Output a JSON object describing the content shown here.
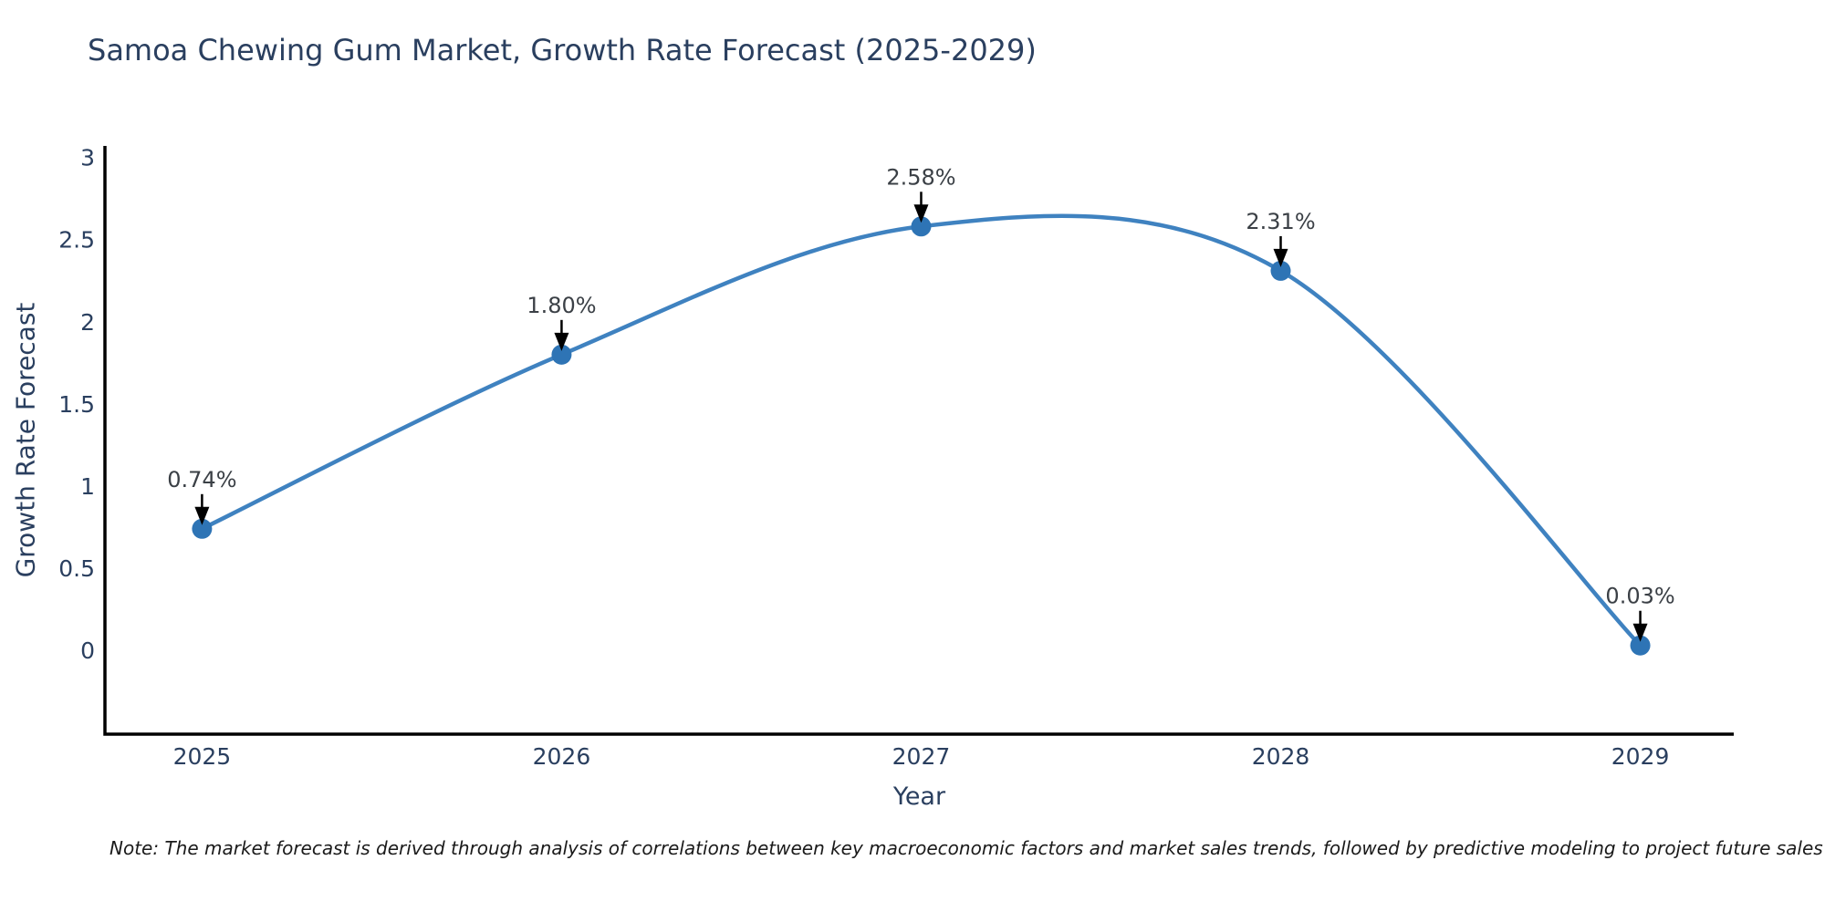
{
  "chart_data": {
    "type": "line",
    "title": "Samoa Chewing Gum Market, Growth Rate Forecast (2025-2029)",
    "xlabel": "Year",
    "ylabel": "Growth Rate Forecast",
    "categories": [
      2025,
      2026,
      2027,
      2028,
      2029
    ],
    "values": [
      0.74,
      1.8,
      2.58,
      2.31,
      0.03
    ],
    "point_labels": [
      "0.74%",
      "1.80%",
      "2.58%",
      "2.31%",
      "0.03%"
    ],
    "xtick_labels": [
      "2025",
      "2026",
      "2027",
      "2028",
      "2029"
    ],
    "yticks": [
      0,
      0.5,
      1,
      1.5,
      2,
      2.5,
      3
    ],
    "ytick_labels": [
      "0",
      "0.5",
      "1",
      "1.5",
      "2",
      "2.5",
      "3"
    ],
    "xlim": [
      2024.73,
      2029.26
    ],
    "ylim": [
      -0.51,
      3.07
    ],
    "grid": false,
    "legend_position": "none",
    "line_shape": "spline",
    "colors": {
      "line": "#3f82c0",
      "marker": "#2e74b5",
      "arrow": "#000000",
      "axis": "#000000",
      "title_text": "#2a3f5f",
      "tick_text": "#2a3f5f",
      "annotation_text": "#3b4046",
      "note_text": "#1a1a1a",
      "background": "#ffffff"
    }
  },
  "note": {
    "text": "Note: The market forecast is derived through analysis of correlations between key macroeconomic factors and market sales trends, followed by predictive modeling to project future sales"
  }
}
